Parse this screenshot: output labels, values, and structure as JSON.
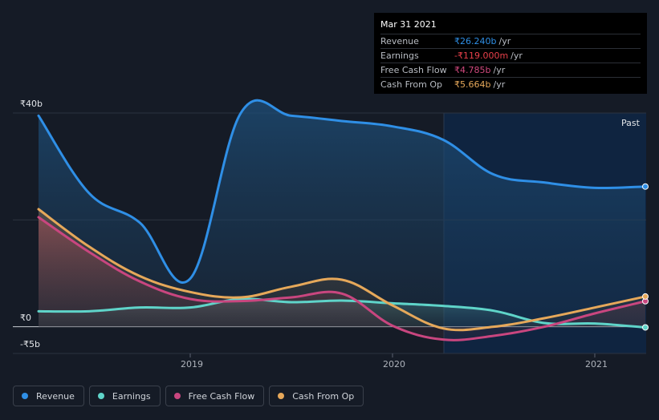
{
  "tooltip": {
    "date": "Mar 31 2021",
    "rows": [
      {
        "label": "Revenue",
        "value": "₹26.240b",
        "unit": "/yr",
        "color": "#2f8fe6"
      },
      {
        "label": "Earnings",
        "value": "-₹119.000m",
        "unit": "/yr",
        "color": "#e8404a"
      },
      {
        "label": "Free Cash Flow",
        "value": "₹4.785b",
        "unit": "/yr",
        "color": "#d0497e"
      },
      {
        "label": "Cash From Op",
        "value": "₹5.664b",
        "unit": "/yr",
        "color": "#e6a85a"
      }
    ]
  },
  "past_label": "Past",
  "legend": [
    {
      "label": "Revenue",
      "color": "#2f8fe6"
    },
    {
      "label": "Earnings",
      "color": "#5fd4c9"
    },
    {
      "label": "Free Cash Flow",
      "color": "#c9467f"
    },
    {
      "label": "Cash From Op",
      "color": "#e6a85a"
    }
  ],
  "chart_data": {
    "type": "area",
    "y_tick_labels": [
      "₹40b",
      "₹0",
      "-₹5b"
    ],
    "x_tick_labels": [
      "2019",
      "2020",
      "2021"
    ],
    "ylim": [
      -5,
      40
    ],
    "xlim": [
      2018.25,
      2021.25
    ],
    "past_start": 2020.25,
    "series": [
      {
        "name": "Revenue",
        "color": "#2f8fe6",
        "x": [
          2018.25,
          2018.5,
          2018.75,
          2019.0,
          2019.25,
          2019.5,
          2019.75,
          2020.0,
          2020.25,
          2020.5,
          2020.75,
          2021.0,
          2021.25
        ],
        "y": [
          39.5,
          25.0,
          19.5,
          9.0,
          40.0,
          39.5,
          38.5,
          37.5,
          35.0,
          28.5,
          27.0,
          26.0,
          26.24
        ]
      },
      {
        "name": "Earnings",
        "color": "#5fd4c9",
        "x": [
          2018.25,
          2018.5,
          2018.75,
          2019.0,
          2019.25,
          2019.5,
          2019.75,
          2020.0,
          2020.25,
          2020.5,
          2020.75,
          2021.0,
          2021.25
        ],
        "y": [
          2.9,
          2.9,
          3.6,
          3.6,
          5.2,
          4.6,
          4.9,
          4.4,
          3.9,
          3.0,
          0.7,
          0.6,
          -0.119
        ]
      },
      {
        "name": "Free Cash Flow",
        "color": "#c9467f",
        "x": [
          2018.25,
          2018.5,
          2018.75,
          2019.0,
          2019.25,
          2019.5,
          2019.75,
          2020.0,
          2020.25,
          2020.5,
          2020.75,
          2021.0,
          2021.25
        ],
        "y": [
          20.5,
          14.0,
          8.5,
          5.2,
          4.8,
          5.5,
          6.2,
          0.2,
          -2.4,
          -1.7,
          0.0,
          2.5,
          4.785
        ]
      },
      {
        "name": "Cash From Op",
        "color": "#e6a85a",
        "x": [
          2018.25,
          2018.5,
          2018.75,
          2019.0,
          2019.25,
          2019.5,
          2019.75,
          2020.0,
          2020.25,
          2020.5,
          2020.75,
          2021.0,
          2021.25
        ],
        "y": [
          22.0,
          15.0,
          9.5,
          6.5,
          5.5,
          7.5,
          8.8,
          4.0,
          -0.3,
          0.0,
          1.6,
          3.6,
          5.664
        ]
      }
    ]
  }
}
